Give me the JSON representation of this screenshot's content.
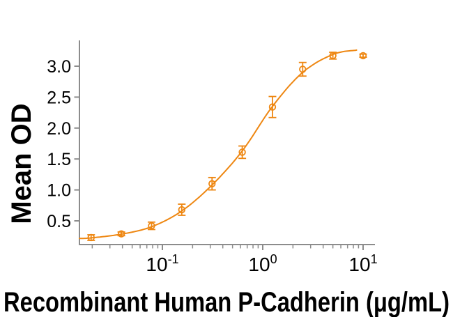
{
  "figure": {
    "background": "#ffffff"
  },
  "colors": {
    "accent": "#EE8712",
    "axis": "#8C8C8C",
    "text": "#000000"
  },
  "chart_data": {
    "type": "scatter",
    "title": "",
    "xlabel": "Recombinant Human P-Cadherin (μg/mL)",
    "ylabel": "Mean OD",
    "x_scale": "log10",
    "xlim": [
      0.015,
      13
    ],
    "ylim": [
      0.12,
      3.42
    ],
    "grid": false,
    "legend": "none",
    "x_major_ticks": [
      {
        "value": 0.1,
        "base": "10",
        "exponent": "-1"
      },
      {
        "value": 1,
        "base": "10",
        "exponent": "0"
      },
      {
        "value": 10,
        "base": "10",
        "exponent": "1"
      }
    ],
    "x_minor_ticks": [
      0.02,
      0.03,
      0.04,
      0.05,
      0.06,
      0.07,
      0.08,
      0.09,
      0.2,
      0.3,
      0.4,
      0.5,
      0.6,
      0.7,
      0.8,
      0.9,
      2,
      3,
      4,
      5,
      6,
      7,
      8,
      9
    ],
    "y_ticks": [
      {
        "value": 0.5,
        "label": "0.5"
      },
      {
        "value": 1.0,
        "label": "1.0"
      },
      {
        "value": 1.5,
        "label": "1.5"
      },
      {
        "value": 2.0,
        "label": "2.0"
      },
      {
        "value": 2.5,
        "label": "2.5"
      },
      {
        "value": 3.0,
        "label": "3.0"
      }
    ],
    "series": [
      {
        "name": "Mean OD",
        "marker": "open-circle",
        "x": [
          0.0195,
          0.039,
          0.078,
          0.156,
          0.3125,
          0.625,
          1.25,
          2.5,
          5,
          10
        ],
        "y": [
          0.23,
          0.29,
          0.42,
          0.68,
          1.1,
          1.61,
          2.34,
          2.95,
          3.17,
          3.17
        ],
        "error": [
          0.045,
          0.03,
          0.06,
          0.09,
          0.1,
          0.1,
          0.17,
          0.11,
          0.055,
          0.025
        ]
      }
    ],
    "fit_curve": {
      "name": "4-parameter logistic fit",
      "x": [
        0.0149,
        0.0195,
        0.039,
        0.078,
        0.156,
        0.3125,
        0.625,
        1.25,
        2.5,
        5,
        8.6
      ],
      "y": [
        0.215,
        0.225,
        0.285,
        0.405,
        0.66,
        1.08,
        1.63,
        2.35,
        2.9,
        3.19,
        3.26
      ]
    }
  }
}
